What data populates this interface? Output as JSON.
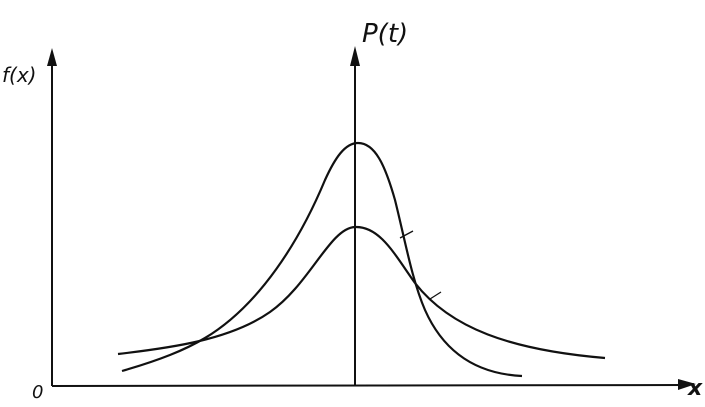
{
  "labels": {
    "y_axis": "f(x)",
    "center_axis": "P(t)",
    "origin": "0",
    "x_axis": "x"
  }
}
